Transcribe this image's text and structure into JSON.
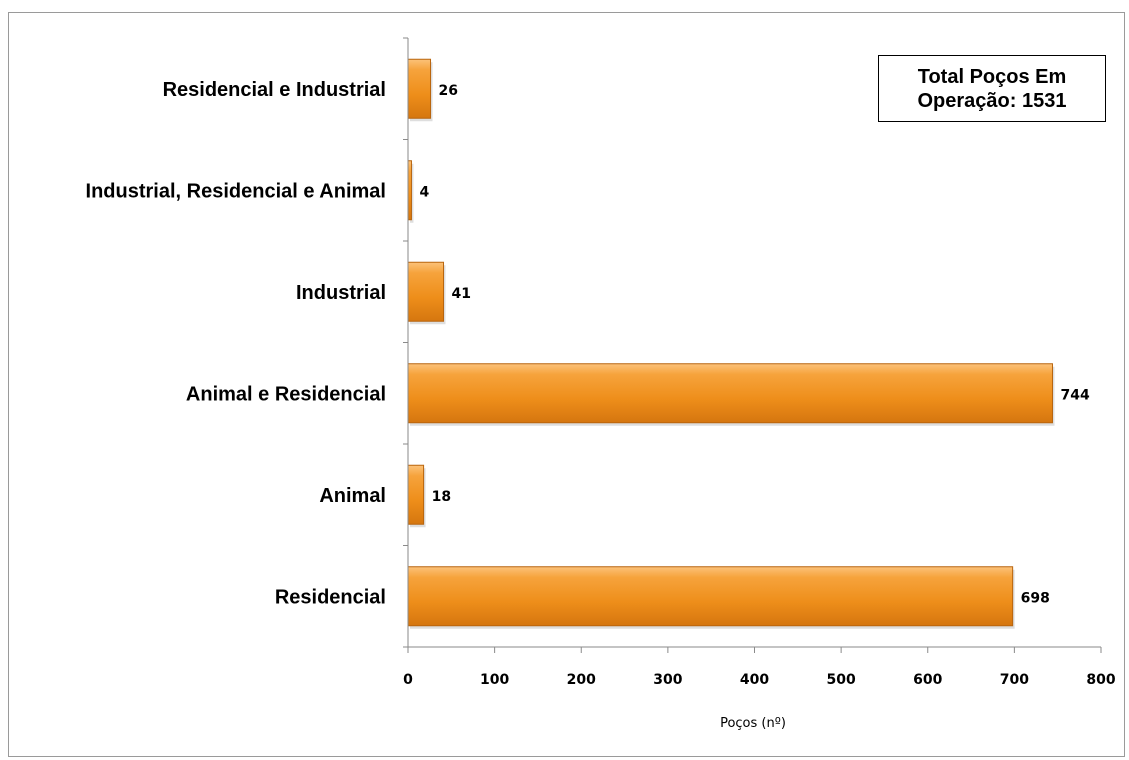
{
  "chart_data": {
    "type": "bar",
    "orientation": "horizontal",
    "categories": [
      "Residencial",
      "Animal",
      "Animal e Residencial",
      "Industrial",
      "Industrial, Residencial e Animal",
      "Residencial e Industrial"
    ],
    "values": [
      698,
      18,
      744,
      41,
      4,
      26
    ],
    "data_labels": [
      "698",
      "18",
      "744",
      "41",
      "4",
      "26"
    ],
    "xlabel": "Poços (nº)",
    "ylabel": "",
    "xlim": [
      0,
      800
    ],
    "xticks": [
      0,
      100,
      200,
      300,
      400,
      500,
      600,
      700,
      800
    ],
    "grid": false,
    "legend": "none",
    "bar_color": "#F0941E",
    "bar_edge_color": "#B8650E",
    "annotation": "Total Poços Em\nOperação: 1531"
  }
}
